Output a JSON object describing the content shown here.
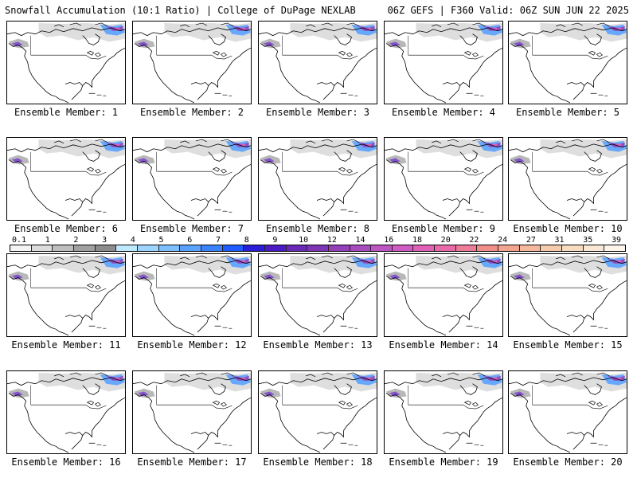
{
  "header": {
    "left": "Snowfall Accumulation (10:1 Ratio) | College of DuPage NEXLAB",
    "right": "06Z GEFS | F360 Valid: 06Z SUN JUN 22 2025"
  },
  "panels": [
    {
      "label": "Ensemble Member: 1"
    },
    {
      "label": "Ensemble Member: 2"
    },
    {
      "label": "Ensemble Member: 3"
    },
    {
      "label": "Ensemble Member: 4"
    },
    {
      "label": "Ensemble Member: 5"
    },
    {
      "label": "Ensemble Member: 6"
    },
    {
      "label": "Ensemble Member: 7"
    },
    {
      "label": "Ensemble Member: 8"
    },
    {
      "label": "Ensemble Member: 9"
    },
    {
      "label": "Ensemble Member: 10"
    },
    {
      "label": "Ensemble Member: 11"
    },
    {
      "label": "Ensemble Member: 12"
    },
    {
      "label": "Ensemble Member: 13"
    },
    {
      "label": "Ensemble Member: 14"
    },
    {
      "label": "Ensemble Member: 15"
    },
    {
      "label": "Ensemble Member: 16"
    },
    {
      "label": "Ensemble Member: 17"
    },
    {
      "label": "Ensemble Member: 18"
    },
    {
      "label": "Ensemble Member: 19"
    },
    {
      "label": "Ensemble Member: 20"
    }
  ],
  "colorbar": {
    "ticks": [
      "0.1",
      "1",
      "2",
      "3",
      "4",
      "5",
      "6",
      "7",
      "8",
      "9",
      "10",
      "12",
      "14",
      "16",
      "18",
      "20",
      "22",
      "24",
      "27",
      "31",
      "35",
      "39"
    ],
    "colors": [
      "#f4f4f4",
      "#dcdcdc",
      "#bebebe",
      "#a0a0a0",
      "#8c8c8c",
      "#bfe9ff",
      "#9cd6ff",
      "#7dbfff",
      "#5aa2ff",
      "#3b82ff",
      "#1f5cff",
      "#2a1fd6",
      "#4a1bc4",
      "#6a2ab8",
      "#7e36b6",
      "#9440b8",
      "#a84cbd",
      "#bd56c2",
      "#d05cc3",
      "#e060b8",
      "#e86aa8",
      "#ec7c98",
      "#f08e8a",
      "#f2a48e",
      "#f4b89c",
      "#f6caac",
      "#f8dcc0",
      "#fae8d6",
      "#fdf4ec"
    ]
  }
}
